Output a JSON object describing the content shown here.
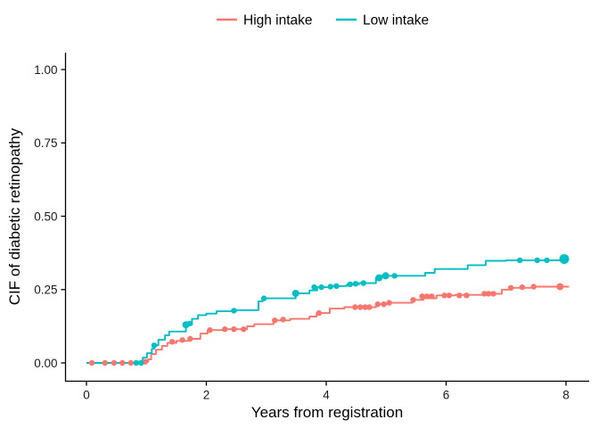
{
  "figure": {
    "legend": [
      {
        "label": "High intake",
        "color": "#F8766D"
      },
      {
        "label": "Low intake",
        "color": "#00BFC4"
      }
    ]
  },
  "chart_data": {
    "type": "line",
    "subtype": "step-cumulative-incidence",
    "title": "",
    "xlabel": "Years from registration",
    "ylabel": "CIF of diabetic retinopathy",
    "xlim": [
      0,
      8.3
    ],
    "ylim": [
      0,
      1.0
    ],
    "x_ticks": [
      0,
      2,
      4,
      6,
      8
    ],
    "x_tick_labels": [
      "0",
      "2",
      "4",
      "6",
      "8"
    ],
    "y_ticks": [
      0,
      0.25,
      0.5,
      0.75,
      1
    ],
    "y_tick_labels": [
      "0.00",
      "0.25",
      "0.50",
      "0.75",
      "1.00"
    ],
    "grid": false,
    "legend_position": "top-center",
    "series": [
      {
        "name": "High intake",
        "color": "#F8766D",
        "steps": [
          [
            0,
            0
          ],
          [
            0.98,
            0.004
          ],
          [
            1.03,
            0.012
          ],
          [
            1.08,
            0.03
          ],
          [
            1.16,
            0.045
          ],
          [
            1.26,
            0.058
          ],
          [
            1.35,
            0.068
          ],
          [
            1.5,
            0.075
          ],
          [
            1.72,
            0.082
          ],
          [
            1.9,
            0.1
          ],
          [
            2.02,
            0.112
          ],
          [
            2.3,
            0.115
          ],
          [
            2.68,
            0.125
          ],
          [
            2.8,
            0.132
          ],
          [
            3.12,
            0.145
          ],
          [
            3.4,
            0.15
          ],
          [
            3.72,
            0.158
          ],
          [
            3.84,
            0.17
          ],
          [
            4.06,
            0.185
          ],
          [
            4.3,
            0.19
          ],
          [
            4.83,
            0.2
          ],
          [
            5.03,
            0.205
          ],
          [
            5.44,
            0.215
          ],
          [
            5.62,
            0.22
          ],
          [
            5.84,
            0.23
          ],
          [
            6.15,
            0.232
          ],
          [
            6.63,
            0.236
          ],
          [
            6.93,
            0.25
          ],
          [
            7.1,
            0.256
          ],
          [
            7.45,
            0.26
          ],
          [
            8.05,
            0.26
          ]
        ],
        "censor_marks": [
          [
            0.09,
            0
          ],
          [
            0.31,
            0
          ],
          [
            0.46,
            0
          ],
          [
            0.6,
            0
          ],
          [
            0.74,
            0
          ],
          [
            0.98,
            0.004
          ],
          [
            1.43,
            0.072
          ],
          [
            1.6,
            0.078
          ],
          [
            1.73,
            0.082
          ],
          [
            2.06,
            0.112
          ],
          [
            2.31,
            0.115
          ],
          [
            2.46,
            0.115
          ],
          [
            2.62,
            0.115
          ],
          [
            3.14,
            0.145
          ],
          [
            3.28,
            0.148
          ],
          [
            3.88,
            0.17
          ],
          [
            4.48,
            0.19
          ],
          [
            4.57,
            0.19
          ],
          [
            4.65,
            0.19
          ],
          [
            4.72,
            0.19
          ],
          [
            4.86,
            0.2
          ],
          [
            4.96,
            0.2
          ],
          [
            5.05,
            0.205
          ],
          [
            5.45,
            0.215
          ],
          [
            5.6,
            0.227
          ],
          [
            5.68,
            0.227
          ],
          [
            5.76,
            0.227
          ],
          [
            5.97,
            0.23
          ],
          [
            6.05,
            0.23
          ],
          [
            6.22,
            0.23
          ],
          [
            6.34,
            0.23
          ],
          [
            6.64,
            0.236
          ],
          [
            6.71,
            0.236
          ],
          [
            6.79,
            0.236
          ],
          [
            7.08,
            0.256
          ],
          [
            7.27,
            0.258
          ],
          [
            7.46,
            0.26
          ],
          [
            7.9,
            0.26,
            4
          ]
        ]
      },
      {
        "name": "Low intake",
        "color": "#00BFC4",
        "steps": [
          [
            0,
            0
          ],
          [
            0.85,
            0.005
          ],
          [
            0.94,
            0.018
          ],
          [
            1.01,
            0.033
          ],
          [
            1.09,
            0.048
          ],
          [
            1.13,
            0.06
          ],
          [
            1.2,
            0.079
          ],
          [
            1.31,
            0.094
          ],
          [
            1.38,
            0.107
          ],
          [
            1.66,
            0.13
          ],
          [
            1.76,
            0.15
          ],
          [
            1.86,
            0.163
          ],
          [
            2.0,
            0.168
          ],
          [
            2.17,
            0.176
          ],
          [
            2.5,
            0.18
          ],
          [
            2.87,
            0.21
          ],
          [
            2.94,
            0.22
          ],
          [
            3.49,
            0.237
          ],
          [
            3.72,
            0.247
          ],
          [
            3.85,
            0.258
          ],
          [
            4.1,
            0.262
          ],
          [
            4.35,
            0.268
          ],
          [
            4.55,
            0.272
          ],
          [
            4.83,
            0.29
          ],
          [
            4.91,
            0.297
          ],
          [
            5.65,
            0.307
          ],
          [
            5.81,
            0.32
          ],
          [
            6.36,
            0.333
          ],
          [
            6.66,
            0.348
          ],
          [
            7.0,
            0.35
          ],
          [
            7.97,
            0.354
          ]
        ],
        "censor_marks": [
          [
            0.83,
            0
          ],
          [
            0.91,
            0
          ],
          [
            1.13,
            0.06
          ],
          [
            1.66,
            0.13,
            4
          ],
          [
            1.72,
            0.134
          ],
          [
            2.46,
            0.178
          ],
          [
            2.96,
            0.22
          ],
          [
            3.49,
            0.237,
            4
          ],
          [
            3.8,
            0.258
          ],
          [
            3.92,
            0.258
          ],
          [
            4.07,
            0.26
          ],
          [
            4.17,
            0.262
          ],
          [
            4.4,
            0.268
          ],
          [
            4.49,
            0.27
          ],
          [
            4.62,
            0.272
          ],
          [
            4.88,
            0.29,
            4
          ],
          [
            4.99,
            0.297,
            4
          ],
          [
            5.14,
            0.297
          ],
          [
            7.23,
            0.35
          ],
          [
            7.52,
            0.35
          ],
          [
            7.68,
            0.35
          ],
          [
            7.97,
            0.354,
            5.5
          ]
        ]
      }
    ]
  }
}
